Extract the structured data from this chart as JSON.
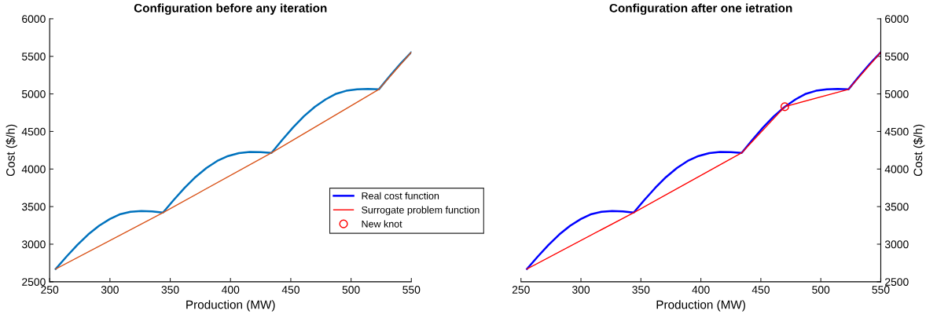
{
  "chart_data": [
    {
      "type": "line",
      "title": "Configuration before any iteration",
      "xlabel": "Production (MW)",
      "ylabel": "Cost ($/h)",
      "xlim": [
        250,
        550
      ],
      "xticks": [
        250,
        300,
        350,
        400,
        450,
        500,
        550
      ],
      "ylim": [
        2500,
        6000
      ],
      "yticks": [
        2500,
        3000,
        3500,
        4000,
        4500,
        5000,
        5500,
        6000
      ],
      "grid": false,
      "legend": false,
      "marker": "none",
      "line_style": "solid",
      "series": [
        {
          "color": "#0072bd",
          "x": [
            255,
            264,
            273,
            282,
            291,
            300,
            308,
            317,
            326,
            335,
            344,
            353,
            362,
            371,
            380,
            389,
            398,
            407,
            416,
            425,
            434,
            443,
            452,
            461,
            470,
            479,
            487,
            496,
            505,
            514,
            523,
            532,
            541,
            550
          ],
          "values": [
            2670,
            2835,
            2991,
            3130,
            3246,
            3335,
            3396,
            3430,
            3441,
            3435,
            3420,
            3590,
            3750,
            3894,
            4014,
            4108,
            4173,
            4212,
            4227,
            4226,
            4215,
            4390,
            4555,
            4704,
            4829,
            4928,
            4998,
            5042,
            5062,
            5066,
            5060,
            5236,
            5403,
            5555
          ]
        },
        {
          "color": "#d95319",
          "x": [
            255,
            344,
            434,
            523,
            550
          ],
          "values": [
            2670,
            3420,
            4215,
            5060,
            5555
          ]
        }
      ]
    },
    {
      "type": "line",
      "title": "Configuration after one ietration",
      "xlabel": "Production (MW)",
      "ylabel": "Cost ($/h)",
      "xlim": [
        250,
        550
      ],
      "xticks": [
        250,
        300,
        350,
        400,
        450,
        500,
        550
      ],
      "ylim": [
        2500,
        6000
      ],
      "yticks": [
        2500,
        3000,
        3500,
        4000,
        4500,
        5000,
        5500,
        6000
      ],
      "grid": false,
      "legend": "left",
      "line_style": "solid",
      "series": [
        {
          "name": "Real cost function",
          "color": "#0000ff",
          "marker": "none",
          "x": [
            255,
            264,
            273,
            282,
            291,
            300,
            308,
            317,
            326,
            335,
            344,
            353,
            362,
            371,
            380,
            389,
            398,
            407,
            416,
            425,
            434,
            443,
            452,
            461,
            470,
            479,
            487,
            496,
            505,
            514,
            523,
            532,
            541,
            550
          ],
          "values": [
            2670,
            2835,
            2991,
            3130,
            3246,
            3335,
            3396,
            3430,
            3441,
            3435,
            3420,
            3590,
            3750,
            3894,
            4014,
            4108,
            4173,
            4212,
            4227,
            4226,
            4215,
            4390,
            4555,
            4704,
            4829,
            4928,
            4998,
            5042,
            5062,
            5066,
            5060,
            5236,
            5403,
            5555
          ]
        },
        {
          "name": "Surrogate problem function",
          "color": "#ff0000",
          "marker": "none",
          "x": [
            255,
            344,
            434,
            470,
            523,
            550
          ],
          "values": [
            2670,
            3420,
            4215,
            4830,
            5060,
            5555
          ]
        },
        {
          "name": "New knot",
          "type": "scatter",
          "color": "#ff0000",
          "marker": "circle",
          "x": [
            470
          ],
          "values": [
            4830
          ]
        }
      ]
    }
  ]
}
